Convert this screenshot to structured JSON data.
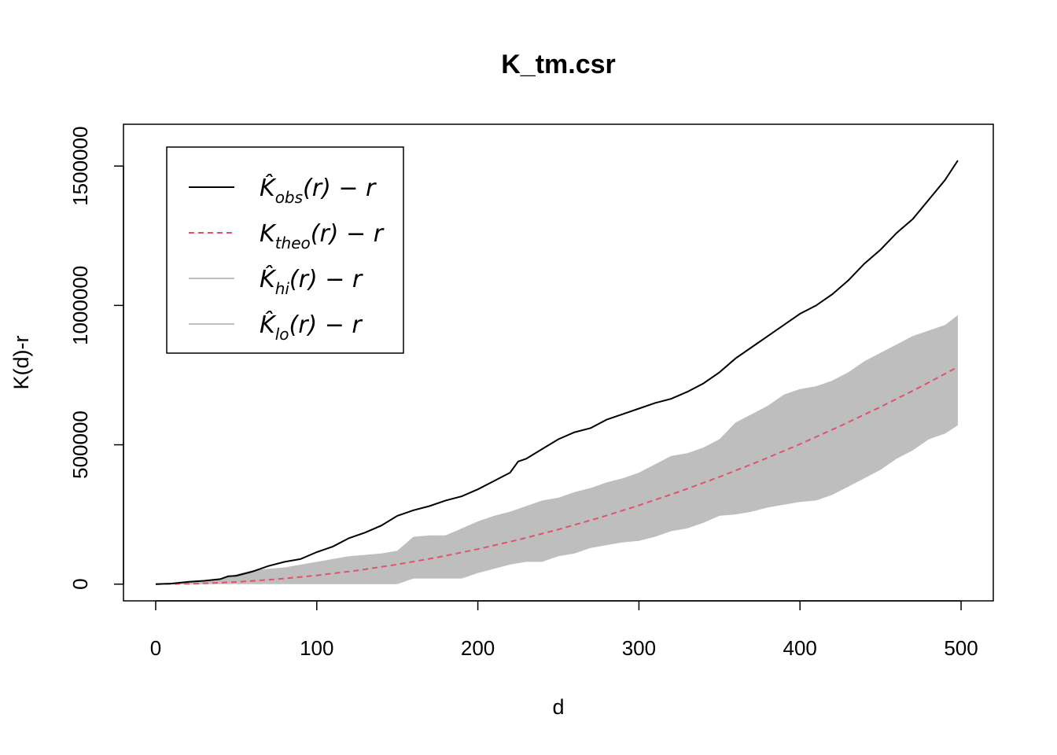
{
  "chart_data": {
    "type": "line",
    "title": "K_tm.csr",
    "xlabel": "d",
    "ylabel": "K(d)-r",
    "xlim": [
      -20,
      520
    ],
    "ylim": [
      -60000,
      1650000
    ],
    "xticks": [
      0,
      100,
      200,
      300,
      400,
      500
    ],
    "yticks": [
      0,
      500000,
      1000000,
      1500000
    ],
    "xtick_labels": [
      "0",
      "100",
      "200",
      "300",
      "400",
      "500"
    ],
    "ytick_labels": [
      "0",
      "500000",
      "1000000",
      "1500000"
    ],
    "grid": false,
    "legend_position": "top-left",
    "legend": [
      {
        "base": "K̂",
        "sub": "obs",
        "tail": "(r) − r",
        "color": "#000000",
        "style": "solid"
      },
      {
        "base": "K",
        "sub": "theo",
        "tail": "(r) − r",
        "color": "#DF536B",
        "style": "dashed"
      },
      {
        "base": "K̂",
        "sub": "hi",
        "tail": "(r) − r",
        "color": "#BEBEBE",
        "style": "solid"
      },
      {
        "base": "K̂",
        "sub": "lo",
        "tail": "(r) − r",
        "color": "#BEBEBE",
        "style": "solid"
      }
    ],
    "series": [
      {
        "key": "obs",
        "color": "#000000",
        "x": [
          0,
          10,
          20,
          30,
          40,
          45,
          50,
          60,
          70,
          80,
          90,
          100,
          110,
          120,
          130,
          140,
          150,
          160,
          170,
          180,
          190,
          200,
          210,
          220,
          225,
          230,
          240,
          250,
          260,
          270,
          280,
          290,
          300,
          310,
          320,
          330,
          340,
          350,
          360,
          370,
          380,
          390,
          400,
          410,
          420,
          430,
          440,
          450,
          460,
          470,
          480,
          490,
          498
        ],
        "y": [
          0,
          2000,
          8000,
          12000,
          18000,
          28000,
          30000,
          45000,
          65000,
          80000,
          90000,
          115000,
          135000,
          165000,
          185000,
          210000,
          245000,
          265000,
          280000,
          300000,
          315000,
          340000,
          370000,
          400000,
          440000,
          450000,
          485000,
          520000,
          545000,
          560000,
          590000,
          610000,
          630000,
          650000,
          665000,
          690000,
          720000,
          760000,
          810000,
          850000,
          890000,
          930000,
          970000,
          1000000,
          1040000,
          1090000,
          1150000,
          1200000,
          1260000,
          1310000,
          1380000,
          1450000,
          1520000
        ]
      },
      {
        "key": "theo",
        "color": "#DF536B",
        "x": [
          0,
          25,
          50,
          75,
          100,
          125,
          150,
          175,
          200,
          225,
          250,
          275,
          300,
          325,
          350,
          375,
          400,
          425,
          450,
          475,
          498
        ],
        "y": [
          0,
          1900,
          7800,
          17700,
          31400,
          49000,
          70600,
          96100,
          125600,
          159000,
          196300,
          237500,
          282600,
          331700,
          384700,
          441600,
          502500,
          567200,
          635900,
          708500,
          779200
        ]
      }
    ],
    "envelope": {
      "color": "#BEBEBE",
      "x": [
        0,
        20,
        40,
        60,
        80,
        100,
        120,
        140,
        150,
        160,
        170,
        180,
        190,
        200,
        210,
        220,
        230,
        240,
        250,
        260,
        270,
        280,
        290,
        300,
        310,
        320,
        330,
        340,
        350,
        360,
        370,
        380,
        390,
        400,
        410,
        420,
        430,
        440,
        450,
        460,
        470,
        480,
        490,
        498
      ],
      "hi": [
        0,
        5000,
        20000,
        50000,
        60000,
        80000,
        100000,
        110000,
        120000,
        170000,
        175000,
        175000,
        200000,
        225000,
        245000,
        260000,
        280000,
        300000,
        310000,
        330000,
        345000,
        365000,
        380000,
        400000,
        430000,
        460000,
        470000,
        490000,
        520000,
        580000,
        610000,
        640000,
        680000,
        700000,
        710000,
        730000,
        760000,
        800000,
        830000,
        860000,
        890000,
        910000,
        930000,
        965000
      ],
      "lo": [
        0,
        0,
        0,
        0,
        0,
        0,
        0,
        0,
        0,
        20000,
        20000,
        20000,
        20000,
        40000,
        55000,
        70000,
        80000,
        80000,
        100000,
        110000,
        130000,
        140000,
        150000,
        155000,
        170000,
        190000,
        200000,
        220000,
        245000,
        250000,
        260000,
        275000,
        285000,
        295000,
        300000,
        320000,
        350000,
        380000,
        410000,
        450000,
        480000,
        520000,
        540000,
        570000
      ]
    }
  }
}
